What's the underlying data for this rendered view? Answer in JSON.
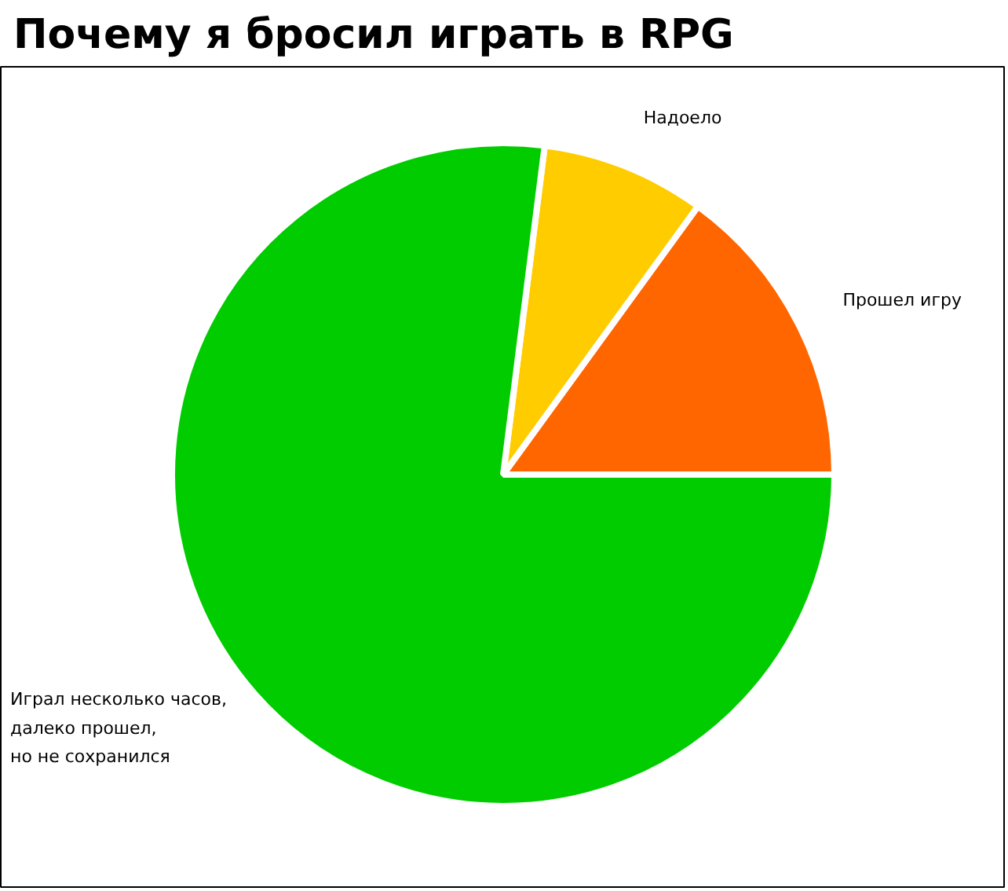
{
  "chart_data": {
    "type": "pie",
    "title": "Почему я бросил играть в RPG",
    "categories": [
      "Прошел игру",
      "Надоело",
      "Играл несколько часов,\nдалеко прошел,\nно не сохранился"
    ],
    "values": [
      15,
      8,
      77
    ],
    "colors": [
      "#ff6600",
      "#ffcc00",
      "#00cc00"
    ]
  }
}
